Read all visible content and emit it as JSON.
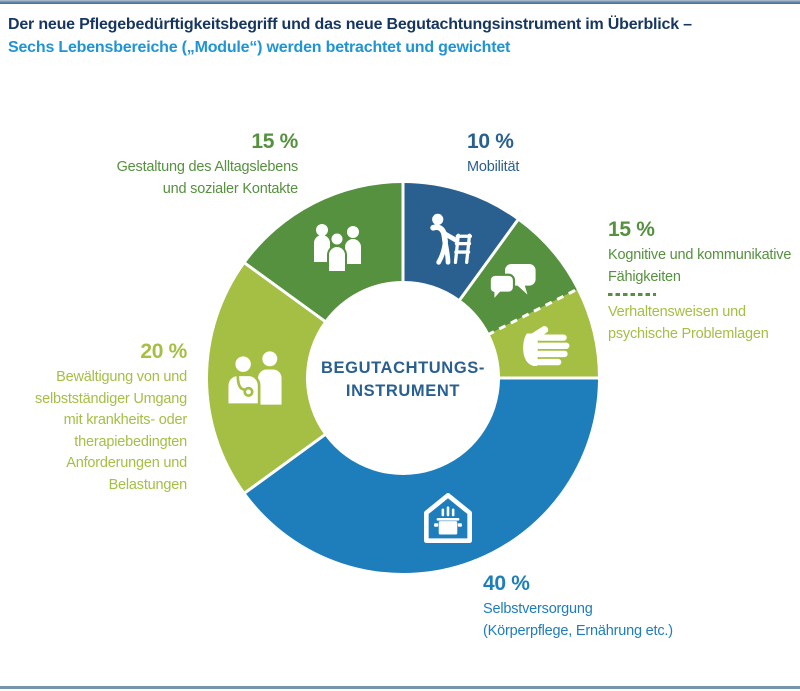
{
  "page": {
    "title_line1": "Der neue Pflegebedürftigkeitsbegriff und das neue Begutachtungsinstrument im Überblick –",
    "title_line2": "Sechs Lebensbereiche („Module“) werden betrachtet und gewichtet"
  },
  "colors": {
    "dark_blue": "#2a608f",
    "bright_blue": "#1e7dbb",
    "medium_green": "#55913e",
    "lime_green": "#a4bf44",
    "title_navy": "#17365f",
    "subtitle_blue": "#2094d4",
    "rule_bottom": "#7694ac",
    "icon_white": "#ffffff"
  },
  "center_label": {
    "line1": "BEGUTACHTUNGS-",
    "line2": "INSTRUMENT"
  },
  "callouts": {
    "mobility": {
      "pct": "10 %",
      "lines": [
        "Mobilität"
      ]
    },
    "daily_life": {
      "pct": "15 %",
      "lines": [
        "Gestaltung des Alltagslebens",
        "und sozialer Kontakte"
      ]
    },
    "cognitive": {
      "pct": "15 %",
      "lines_top": [
        "Kognitive und kommunikative",
        "Fähigkeiten"
      ],
      "lines_bottom": [
        "Verhaltensweisen und",
        "psychische Problemlagen"
      ]
    },
    "coping": {
      "pct": "20 %",
      "lines": [
        "Bewältigung von und",
        "selbstständiger Umgang",
        "mit krankheits- oder",
        "therapiebedingten",
        "Anforderungen und",
        "Belastungen"
      ]
    },
    "selfcare": {
      "pct": "40 %",
      "lines": [
        "Selbstversorgung",
        "(Körperpflege, Ernährung etc.)"
      ]
    }
  },
  "chart_data": {
    "type": "pie",
    "subtype": "donut",
    "title": "Sechs Lebensbereiche („Module“) werden betrachtet und gewichtet",
    "unit": "%",
    "start_angle_deg": 0,
    "direction": "clockwise",
    "categories": [
      "Mobilität",
      "Kognitive und kommunikative Fähigkeiten",
      "Verhaltensweisen und psychische Problemlagen",
      "Selbstversorgung (Körperpflege, Ernährung etc.)",
      "Bewältigung von und selbstständiger Umgang mit krankheits- oder therapiebedingten Anforderungen und Belastungen",
      "Gestaltung des Alltagslebens und sozialer Kontakte"
    ],
    "values": [
      10,
      7.5,
      7.5,
      40,
      20,
      15
    ],
    "displayed_pct": [
      "10 %",
      "15 %",
      "15 %",
      "40 %",
      "20 %",
      "15 %"
    ],
    "segments": [
      {
        "id": "mobilitaet",
        "label": "Mobilität",
        "value_pct": 10,
        "color_key": "dark_blue",
        "icon": "walker-icon",
        "end_boundary": "solid"
      },
      {
        "id": "kognitiv",
        "label": "Kognitive und kommunikative Fähigkeiten",
        "value_pct": 7.5,
        "color_key": "medium_green",
        "icon": "speech-bubbles-icon",
        "end_boundary": "dashed"
      },
      {
        "id": "verhalten",
        "label": "Verhaltensweisen und psychische Problemlagen",
        "value_pct": 7.5,
        "color_key": "lime_green",
        "icon": "hand-icon",
        "end_boundary": "solid"
      },
      {
        "id": "selbstversorgung",
        "label": "Selbstversorgung (Körperpflege, Ernährung etc.)",
        "value_pct": 40,
        "color_key": "bright_blue",
        "icon": "house-cooking-pot-icon",
        "end_boundary": "solid"
      },
      {
        "id": "bewaeltigung",
        "label": "Bewältigung von und selbstständiger Umgang mit krankheits- oder therapiebedingten Anforderungen und Belastungen",
        "value_pct": 20,
        "color_key": "lime_green",
        "icon": "doctor-patient-icon",
        "end_boundary": "solid"
      },
      {
        "id": "alltagsgestaltung",
        "label": "Gestaltung des Alltagslebens und sozialer Kontakte",
        "value_pct": 15,
        "color_key": "medium_green",
        "icon": "people-group-icon",
        "end_boundary": "solid"
      }
    ]
  }
}
